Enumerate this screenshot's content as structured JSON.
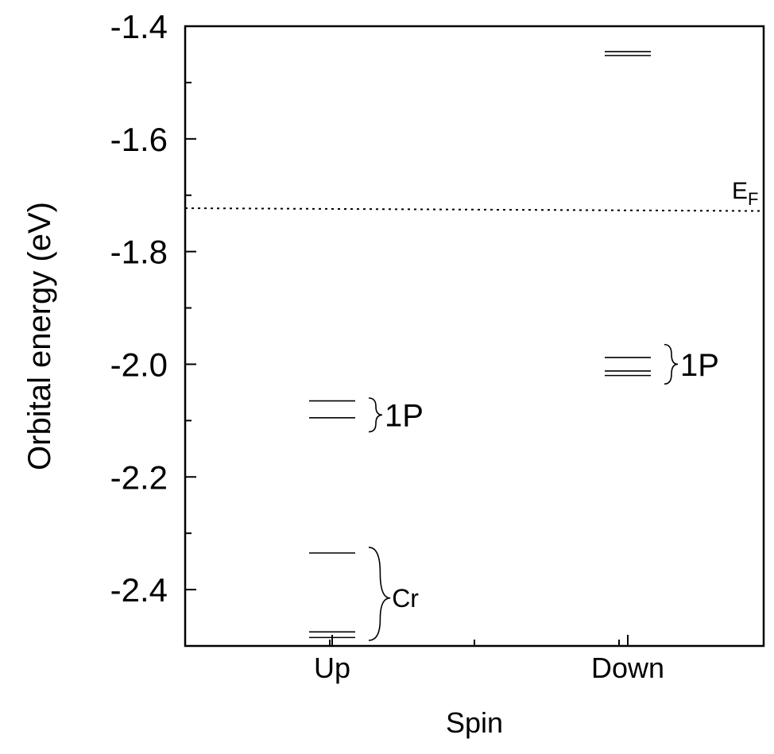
{
  "chart_data": {
    "type": "scatter",
    "title": "",
    "xlabel": "Spin",
    "ylabel": "Orbital energy (eV)",
    "ylim": [
      -2.5,
      -1.4
    ],
    "y_ticks": [
      -1.4,
      -1.6,
      -1.8,
      -2.0,
      -2.2,
      -2.4
    ],
    "y_tick_labels": [
      "-1.4",
      "-1.6",
      "-1.8",
      "-2.0",
      "-2.2",
      "-2.4"
    ],
    "y_minor_step": 0.1,
    "categories": [
      "Up",
      "Down"
    ],
    "x_minor_positions": [
      1.5,
      2.5,
      3.5
    ],
    "grid": false,
    "series": [
      {
        "category": "Up",
        "levels": [
          -2.065,
          -2.095,
          -2.335,
          -2.475,
          -2.485
        ]
      },
      {
        "category": "Down",
        "levels": [
          -1.445,
          -1.452,
          -1.988,
          -2.012,
          -2.02
        ]
      }
    ],
    "fermi_level": {
      "label_main": "E",
      "label_sub": "F",
      "y_left": -1.723,
      "y_right": -1.728,
      "style": "dotted"
    },
    "annotations": [
      {
        "text": "1P",
        "category": "Up",
        "y_top": -2.06,
        "y_bottom": -2.12,
        "y_label": -2.09
      },
      {
        "text": "Cr",
        "category": "Up",
        "y_top": -2.325,
        "y_bottom": -2.49,
        "y_label": -2.415
      },
      {
        "text": "1P",
        "category": "Down",
        "y_top": -1.965,
        "y_bottom": -2.035,
        "y_label": -2.0
      }
    ]
  }
}
